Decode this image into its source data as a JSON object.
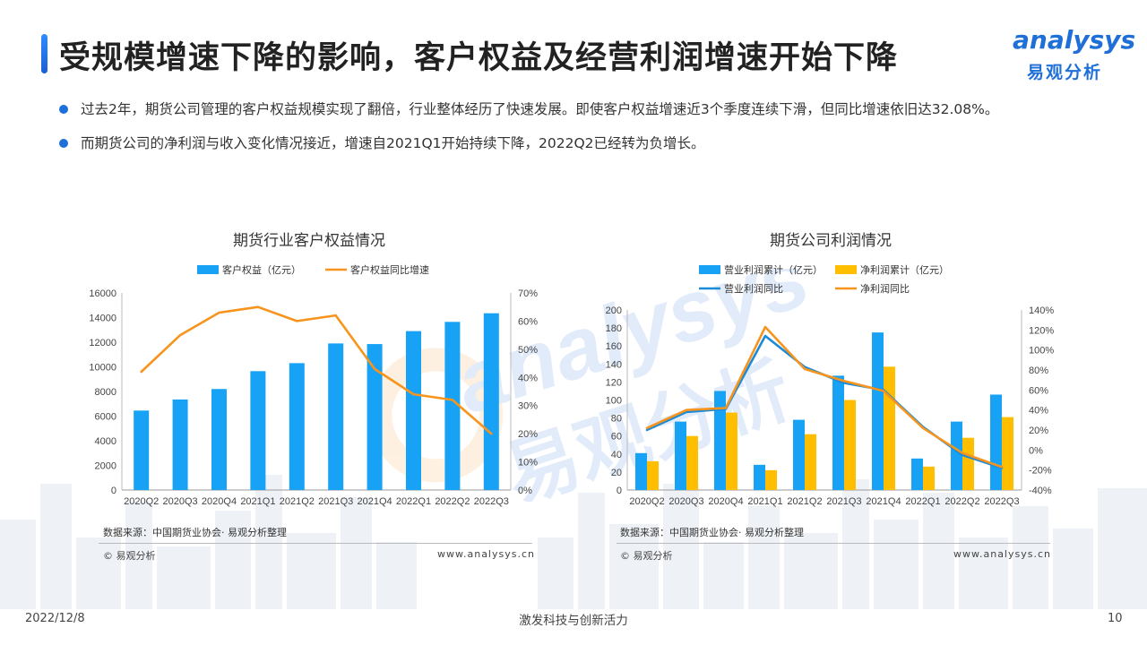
{
  "slide": {
    "title": "受规模增速下降的影响，客户权益及经营利润增速开始下降",
    "bullets": [
      "过去2年，期货公司管理的客户权益规模实现了翻倍，行业整体经历了快速发展。即使客户权益增速近3个季度连续下滑，但同比增速依旧达32.08%。",
      "而期货公司的净利润与收入变化情况接近，增速自2021Q1开始持续下降，2022Q2已经转为负增长。"
    ],
    "logo_en": "analysys",
    "logo_cn": "易观分析",
    "watermark_en": "analysys",
    "watermark_cn": "易观分析",
    "footer_date": "2022/12/8",
    "footer_slogan": "激发科技与创新活力",
    "page_number": "10",
    "colors": {
      "brand_blue": "#1f6fd8",
      "bar_blue": "#17a2f5",
      "bar_yellow": "#ffbf00",
      "line_orange": "#f7941d",
      "line_blue": "#1b8bd8"
    }
  },
  "chart_data": [
    {
      "type": "bar",
      "title": "期货行业客户权益情况",
      "categories": [
        "2020Q2",
        "2020Q3",
        "2020Q4",
        "2021Q1",
        "2021Q2",
        "2021Q3",
        "2021Q4",
        "2022Q1",
        "2022Q2",
        "2022Q3"
      ],
      "series": [
        {
          "name": "客户权益（亿元）",
          "type": "bar",
          "axis": "left",
          "color": "#17a2f5",
          "values": [
            6450,
            7350,
            8200,
            9650,
            10300,
            11900,
            11850,
            12900,
            13650,
            14350
          ]
        },
        {
          "name": "客户权益同比增速",
          "type": "line",
          "axis": "right",
          "color": "#f7941d",
          "values": [
            0.42,
            0.55,
            0.63,
            0.65,
            0.6,
            0.62,
            0.43,
            0.34,
            0.32,
            0.2
          ]
        }
      ],
      "yticks_left": [
        "0",
        "2000",
        "4000",
        "6000",
        "8000",
        "10000",
        "12000",
        "14000",
        "16000"
      ],
      "yticks_right": [
        "0%",
        "10%",
        "20%",
        "30%",
        "40%",
        "50%",
        "60%",
        "70%"
      ],
      "ylim_left": [
        0,
        16000
      ],
      "ylim_right": [
        0,
        0.7
      ],
      "legend": "top",
      "source": "数据来源：中国期货业协会· 易观分析整理",
      "copyright": "© 易观分析",
      "website": "www.analysys.cn"
    },
    {
      "type": "bar",
      "title": "期货公司利润情况",
      "categories": [
        "2020Q2",
        "2020Q3",
        "2020Q4",
        "2021Q1",
        "2021Q2",
        "2021Q3",
        "2021Q4",
        "2022Q1",
        "2022Q2",
        "2022Q3"
      ],
      "series": [
        {
          "name": "营业利润累计（亿元）",
          "type": "bar",
          "axis": "left",
          "color": "#17a2f5",
          "values": [
            41,
            76,
            110,
            28,
            78,
            127,
            175,
            35,
            76,
            106
          ]
        },
        {
          "name": "净利润累计（亿元）",
          "type": "bar",
          "axis": "left",
          "color": "#ffbf00",
          "values": [
            32,
            60,
            86,
            22,
            62,
            100,
            137,
            26,
            58,
            81
          ]
        },
        {
          "name": "营业利润同比",
          "type": "line",
          "axis": "right",
          "color": "#1b8bd8",
          "values": [
            0.2,
            0.38,
            0.41,
            1.14,
            0.83,
            0.67,
            0.6,
            0.23,
            -0.05,
            -0.18
          ]
        },
        {
          "name": "净利润同比",
          "type": "line",
          "axis": "right",
          "color": "#f7941d",
          "values": [
            0.22,
            0.4,
            0.42,
            1.23,
            0.81,
            0.69,
            0.59,
            0.22,
            -0.03,
            -0.17
          ]
        }
      ],
      "yticks_left": [
        "0",
        "20",
        "40",
        "60",
        "80",
        "100",
        "120",
        "140",
        "160",
        "180",
        "200"
      ],
      "yticks_right": [
        "-40%",
        "-20%",
        "0%",
        "20%",
        "40%",
        "60%",
        "80%",
        "100%",
        "120%",
        "140%"
      ],
      "ylim_left": [
        0,
        200
      ],
      "ylim_right": [
        -0.4,
        1.4
      ],
      "legend": "top",
      "source": "数据来源：中国期货业协会· 易观分析整理",
      "copyright": "© 易观分析",
      "website": "www.analysys.cn"
    }
  ]
}
